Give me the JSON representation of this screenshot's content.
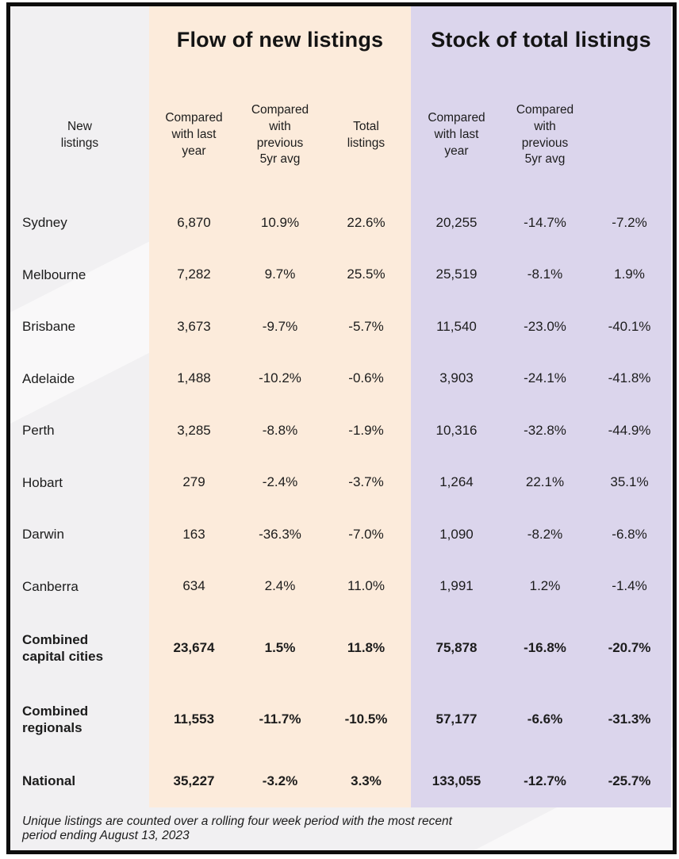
{
  "colors": {
    "flow_section_bg": "#fcebdb",
    "stock_section_bg": "#dbd5ec",
    "page_bg": "#f1f0f2",
    "frame_border": "#0d0d0d",
    "text": "#1c1c1c"
  },
  "chart_data": {
    "type": "table",
    "column_groups": [
      {
        "label": "Flow of new listings",
        "columns": [
          "New listings",
          "Compared with last year",
          "Compared with previous 5yr avg"
        ]
      },
      {
        "label": "Stock of total listings",
        "columns": [
          "Total listings",
          "Compared with last year",
          "Compared with previous 5yr avg"
        ]
      }
    ],
    "header_display": [
      "New\nlistings",
      "Compared\nwith last\nyear",
      "Compared\nwith\nprevious\n5yr avg",
      "Total\nlistings",
      "Compared\nwith last\nyear",
      "Compared\nwith\nprevious\n5yr avg"
    ],
    "rows": [
      {
        "label": "Sydney",
        "label_display": "Sydney",
        "bold": false,
        "flow": [
          "6,870",
          "10.9%",
          "22.6%"
        ],
        "stock": [
          "20,255",
          "-14.7%",
          "-7.2%"
        ]
      },
      {
        "label": "Melbourne",
        "label_display": "Melbourne",
        "bold": false,
        "flow": [
          "7,282",
          "9.7%",
          "25.5%"
        ],
        "stock": [
          "25,519",
          "-8.1%",
          "1.9%"
        ]
      },
      {
        "label": "Brisbane",
        "label_display": "Brisbane",
        "bold": false,
        "flow": [
          "3,673",
          "-9.7%",
          "-5.7%"
        ],
        "stock": [
          "11,540",
          "-23.0%",
          "-40.1%"
        ]
      },
      {
        "label": "Adelaide",
        "label_display": "Adelaide",
        "bold": false,
        "flow": [
          "1,488",
          "-10.2%",
          "-0.6%"
        ],
        "stock": [
          "3,903",
          "-24.1%",
          "-41.8%"
        ]
      },
      {
        "label": "Perth",
        "label_display": "Perth",
        "bold": false,
        "flow": [
          "3,285",
          "-8.8%",
          "-1.9%"
        ],
        "stock": [
          "10,316",
          "-32.8%",
          "-44.9%"
        ]
      },
      {
        "label": "Hobart",
        "label_display": "Hobart",
        "bold": false,
        "flow": [
          "279",
          "-2.4%",
          "-3.7%"
        ],
        "stock": [
          "1,264",
          "22.1%",
          "35.1%"
        ]
      },
      {
        "label": "Darwin",
        "label_display": "Darwin",
        "bold": false,
        "flow": [
          "163",
          "-36.3%",
          "-7.0%"
        ],
        "stock": [
          "1,090",
          "-8.2%",
          "-6.8%"
        ]
      },
      {
        "label": "Canberra",
        "label_display": "Canberra",
        "bold": false,
        "flow": [
          "634",
          "2.4%",
          "11.0%"
        ],
        "stock": [
          "1,991",
          "1.2%",
          "-1.4%"
        ]
      },
      {
        "label": "Combined capital cities",
        "label_display": "Combined\ncapital cities",
        "bold": true,
        "flow": [
          "23,674",
          "1.5%",
          "11.8%"
        ],
        "stock": [
          "75,878",
          "-16.8%",
          "-20.7%"
        ]
      },
      {
        "label": "Combined regionals",
        "label_display": "Combined\nregionals",
        "bold": true,
        "flow": [
          "11,553",
          "-11.7%",
          "-10.5%"
        ],
        "stock": [
          "57,177",
          "-6.6%",
          "-31.3%"
        ]
      },
      {
        "label": "National",
        "label_display": "National",
        "bold": true,
        "flow": [
          "35,227",
          "-3.2%",
          "3.3%"
        ],
        "stock": [
          "133,055",
          "-12.7%",
          "-25.7%"
        ]
      }
    ],
    "footnote": "Unique listings are counted over a rolling four week period with the most recent\nperiod ending August 13, 2023"
  }
}
